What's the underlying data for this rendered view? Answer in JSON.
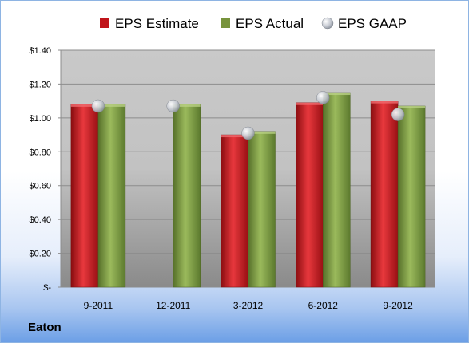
{
  "company": "Eaton",
  "chart_data": {
    "type": "bar",
    "categories": [
      "9-2011",
      "12-2011",
      "3-2012",
      "6-2012",
      "9-2012"
    ],
    "series": [
      {
        "name": "EPS Estimate",
        "type": "bar",
        "color": "#c0141a",
        "values": [
          1.08,
          null,
          0.9,
          1.09,
          1.1
        ]
      },
      {
        "name": "EPS Actual",
        "type": "bar",
        "color": "#77933c",
        "values": [
          1.08,
          1.08,
          0.92,
          1.15,
          1.07
        ]
      },
      {
        "name": "EPS GAAP",
        "type": "marker",
        "color": "#c8ccd4",
        "values": [
          1.07,
          1.07,
          0.91,
          1.12,
          1.02
        ]
      }
    ],
    "ylim": [
      0,
      1.4
    ],
    "yticks": [
      {
        "value": 0,
        "label": "$-"
      },
      {
        "value": 0.2,
        "label": "$0.20"
      },
      {
        "value": 0.4,
        "label": "$0.40"
      },
      {
        "value": 0.6,
        "label": "$0.60"
      },
      {
        "value": 0.8,
        "label": "$0.80"
      },
      {
        "value": 1.0,
        "label": "$1.00"
      },
      {
        "value": 1.2,
        "label": "$1.20"
      },
      {
        "value": 1.4,
        "label": "$1.40"
      }
    ],
    "grid": true,
    "legend_position": "top"
  }
}
